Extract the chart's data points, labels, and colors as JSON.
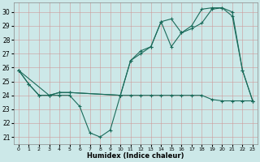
{
  "xlabel": "Humidex (Indice chaleur)",
  "xlim": [
    -0.5,
    23.5
  ],
  "ylim": [
    20.5,
    30.7
  ],
  "yticks": [
    21,
    22,
    23,
    24,
    25,
    26,
    27,
    28,
    29,
    30
  ],
  "xticks": [
    0,
    1,
    2,
    3,
    4,
    5,
    6,
    7,
    8,
    9,
    10,
    11,
    12,
    13,
    14,
    15,
    16,
    17,
    18,
    19,
    20,
    21,
    22,
    23
  ],
  "bg_color": "#cce8e8",
  "line_color": "#1a6b5a",
  "line1_x": [
    0,
    1,
    2,
    3,
    4,
    5,
    6,
    7,
    8,
    9,
    10,
    11,
    12,
    13,
    14,
    15,
    16,
    17,
    18,
    19,
    20,
    21,
    22,
    23
  ],
  "line1_y": [
    25.8,
    24.8,
    24.0,
    24.0,
    24.0,
    24.0,
    23.2,
    21.3,
    21.0,
    21.5,
    24.0,
    24.0,
    24.0,
    24.0,
    24.0,
    24.0,
    24.0,
    24.0,
    24.0,
    23.7,
    23.6,
    23.6,
    23.6,
    23.6
  ],
  "line2_x": [
    0,
    1,
    2,
    3,
    4,
    5,
    10,
    11,
    12,
    13,
    14,
    15,
    16,
    17,
    18,
    19,
    20,
    21,
    22,
    23
  ],
  "line2_y": [
    25.8,
    24.8,
    24.0,
    24.0,
    24.2,
    24.2,
    24.0,
    26.5,
    27.0,
    27.5,
    29.3,
    27.5,
    28.5,
    28.8,
    29.2,
    30.2,
    30.3,
    29.7,
    25.8,
    23.6
  ],
  "line3_x": [
    0,
    3,
    4,
    5,
    10,
    11,
    12,
    13,
    14,
    15,
    16,
    17,
    18,
    19,
    20,
    21,
    22,
    23
  ],
  "line3_y": [
    25.8,
    24.0,
    24.2,
    24.2,
    24.0,
    26.5,
    27.2,
    27.5,
    29.3,
    29.5,
    28.5,
    29.0,
    30.2,
    30.3,
    30.3,
    30.0,
    25.8,
    23.6
  ]
}
